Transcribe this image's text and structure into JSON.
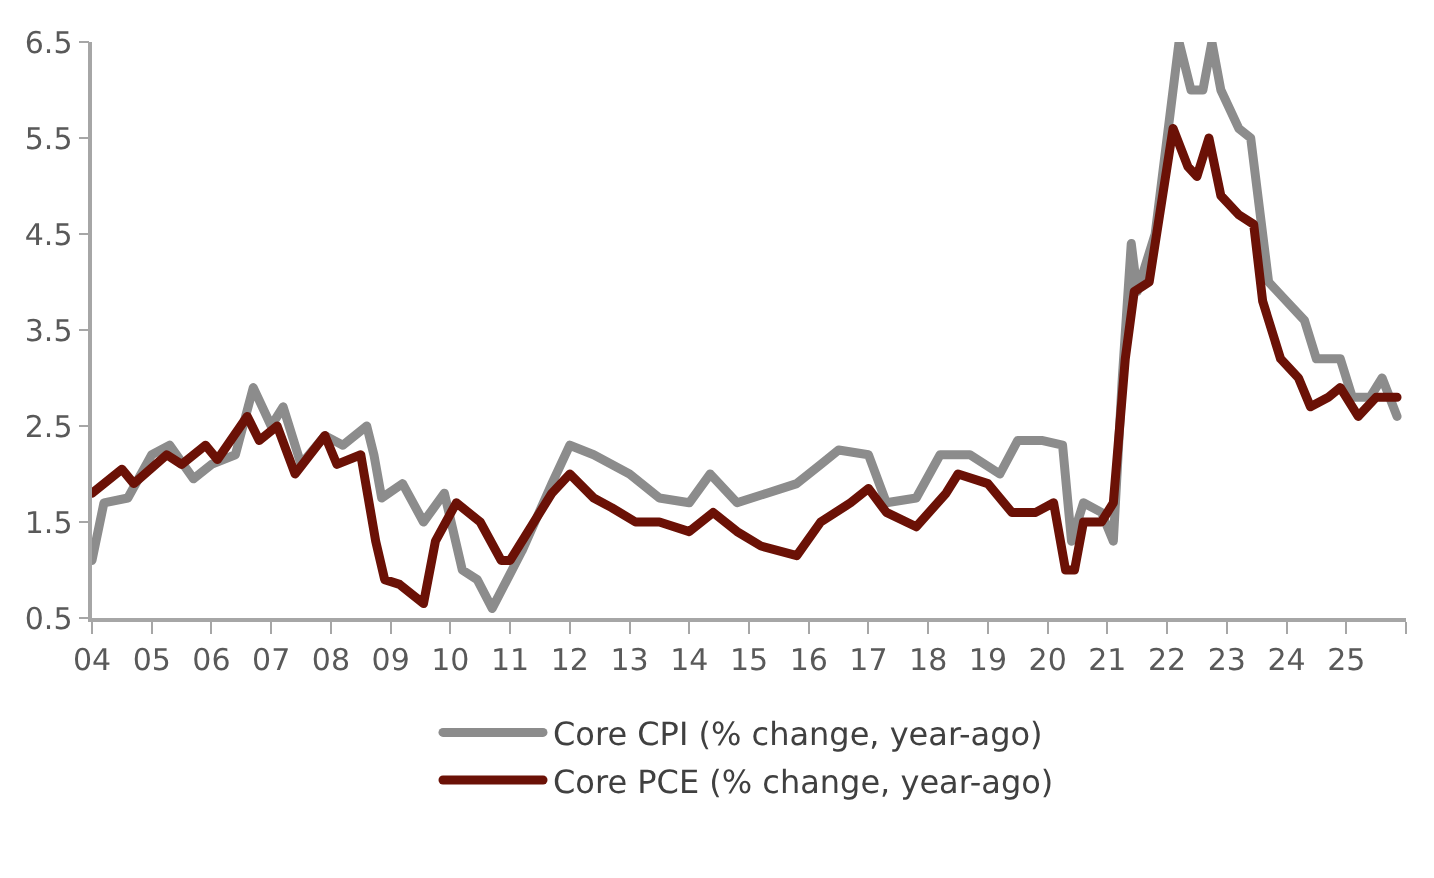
{
  "chart_data": {
    "type": "line",
    "series": [
      {
        "name": "Core CPI (% change, year-ago)",
        "color": "#8c8c8c",
        "x": [
          2004.0,
          2004.2,
          2004.6,
          2005.0,
          2005.3,
          2005.7,
          2006.0,
          2006.4,
          2006.7,
          2007.0,
          2007.2,
          2007.5,
          2007.9,
          2008.2,
          2008.6,
          2008.72,
          2008.85,
          2009.2,
          2009.55,
          2009.9,
          2010.2,
          2010.45,
          2010.7,
          2011.2,
          2011.7,
          2012.0,
          2012.4,
          2013.0,
          2013.5,
          2014.0,
          2014.35,
          2014.8,
          2015.3,
          2015.8,
          2016.2,
          2016.5,
          2017.0,
          2017.3,
          2017.8,
          2018.2,
          2018.7,
          2019.2,
          2019.5,
          2019.9,
          2020.25,
          2020.4,
          2020.6,
          2020.9,
          2021.1,
          2021.25,
          2021.4,
          2021.5,
          2021.8,
          2022.0,
          2022.2,
          2022.4,
          2022.6,
          2022.75,
          2022.9,
          2023.2,
          2023.4,
          2023.7,
          2024.0,
          2024.3,
          2024.5,
          2024.9,
          2025.1,
          2025.4,
          2025.6,
          2025.85
        ],
        "values": [
          1.1,
          1.7,
          1.75,
          2.2,
          2.3,
          1.95,
          2.1,
          2.2,
          2.9,
          2.5,
          2.7,
          2.1,
          2.4,
          2.3,
          2.5,
          2.2,
          1.75,
          1.9,
          1.5,
          1.8,
          1.0,
          0.9,
          0.6,
          1.2,
          1.9,
          2.3,
          2.2,
          2.0,
          1.75,
          1.7,
          2.0,
          1.7,
          1.8,
          1.9,
          2.1,
          2.25,
          2.2,
          1.7,
          1.75,
          2.2,
          2.2,
          2.0,
          2.35,
          2.35,
          2.3,
          1.3,
          1.7,
          1.6,
          1.3,
          3.0,
          4.4,
          3.9,
          4.5,
          5.5,
          6.5,
          6.0,
          6.0,
          6.5,
          6.0,
          5.6,
          5.5,
          4.0,
          3.8,
          3.6,
          3.2,
          3.2,
          2.8,
          2.8,
          3.0,
          2.6
        ]
      },
      {
        "name": "Core PCE (% change, year-ago)",
        "color": "#6b1106",
        "x": [
          2004.0,
          2004.5,
          2004.7,
          2005.25,
          2005.5,
          2005.9,
          2006.1,
          2006.6,
          2006.8,
          2007.1,
          2007.4,
          2007.9,
          2008.1,
          2008.5,
          2008.75,
          2008.9,
          2009.15,
          2009.55,
          2009.75,
          2010.1,
          2010.5,
          2010.85,
          2011.0,
          2011.7,
          2012.0,
          2012.4,
          2012.7,
          2013.1,
          2013.5,
          2014.0,
          2014.4,
          2014.8,
          2015.2,
          2015.8,
          2016.2,
          2016.7,
          2017.0,
          2017.3,
          2017.8,
          2018.3,
          2018.5,
          2019.0,
          2019.4,
          2019.8,
          2020.1,
          2020.3,
          2020.45,
          2020.6,
          2020.9,
          2021.1,
          2021.3,
          2021.45,
          2021.7,
          2022.0,
          2022.1,
          2022.35,
          2022.5,
          2022.7,
          2022.9,
          2023.2,
          2023.45,
          2023.6,
          2023.9,
          2024.2,
          2024.4,
          2024.7,
          2024.9,
          2025.2,
          2025.5,
          2025.85
        ],
        "values": [
          1.8,
          2.05,
          1.9,
          2.2,
          2.1,
          2.3,
          2.15,
          2.6,
          2.35,
          2.5,
          2.0,
          2.4,
          2.1,
          2.2,
          1.3,
          0.9,
          0.85,
          0.65,
          1.3,
          1.7,
          1.5,
          1.1,
          1.1,
          1.8,
          2.0,
          1.75,
          1.65,
          1.5,
          1.5,
          1.4,
          1.6,
          1.4,
          1.25,
          1.15,
          1.5,
          1.7,
          1.85,
          1.6,
          1.45,
          1.8,
          2.0,
          1.9,
          1.6,
          1.6,
          1.7,
          1.0,
          1.0,
          1.5,
          1.5,
          1.7,
          3.2,
          3.9,
          4.0,
          5.2,
          5.6,
          5.2,
          5.1,
          5.5,
          4.9,
          4.7,
          4.6,
          3.8,
          3.2,
          3.0,
          2.7,
          2.8,
          2.9,
          2.6,
          2.8,
          2.8
        ]
      }
    ],
    "xlim": [
      2004,
      2026
    ],
    "xticks": [
      {
        "value": 2004,
        "label": "04"
      },
      {
        "value": 2005,
        "label": "05"
      },
      {
        "value": 2006,
        "label": "06"
      },
      {
        "value": 2007,
        "label": "07"
      },
      {
        "value": 2008,
        "label": "08"
      },
      {
        "value": 2009,
        "label": "09"
      },
      {
        "value": 2010,
        "label": "10"
      },
      {
        "value": 2011,
        "label": "11"
      },
      {
        "value": 2012,
        "label": "12"
      },
      {
        "value": 2013,
        "label": "13"
      },
      {
        "value": 2014,
        "label": "14"
      },
      {
        "value": 2015,
        "label": "15"
      },
      {
        "value": 2016,
        "label": "16"
      },
      {
        "value": 2017,
        "label": "17"
      },
      {
        "value": 2018,
        "label": "18"
      },
      {
        "value": 2019,
        "label": "19"
      },
      {
        "value": 2020,
        "label": "20"
      },
      {
        "value": 2021,
        "label": "21"
      },
      {
        "value": 2022,
        "label": "22"
      },
      {
        "value": 2023,
        "label": "23"
      },
      {
        "value": 2024,
        "label": "24"
      },
      {
        "value": 2025,
        "label": "25"
      },
      {
        "value": 2026,
        "label": null
      }
    ],
    "ylim": [
      0.5,
      6.5
    ],
    "yticks": [
      0.5,
      1.5,
      2.5,
      3.5,
      4.5,
      5.5,
      6.5
    ],
    "legend": "bottom",
    "marker": "none",
    "line_style": "solid"
  }
}
